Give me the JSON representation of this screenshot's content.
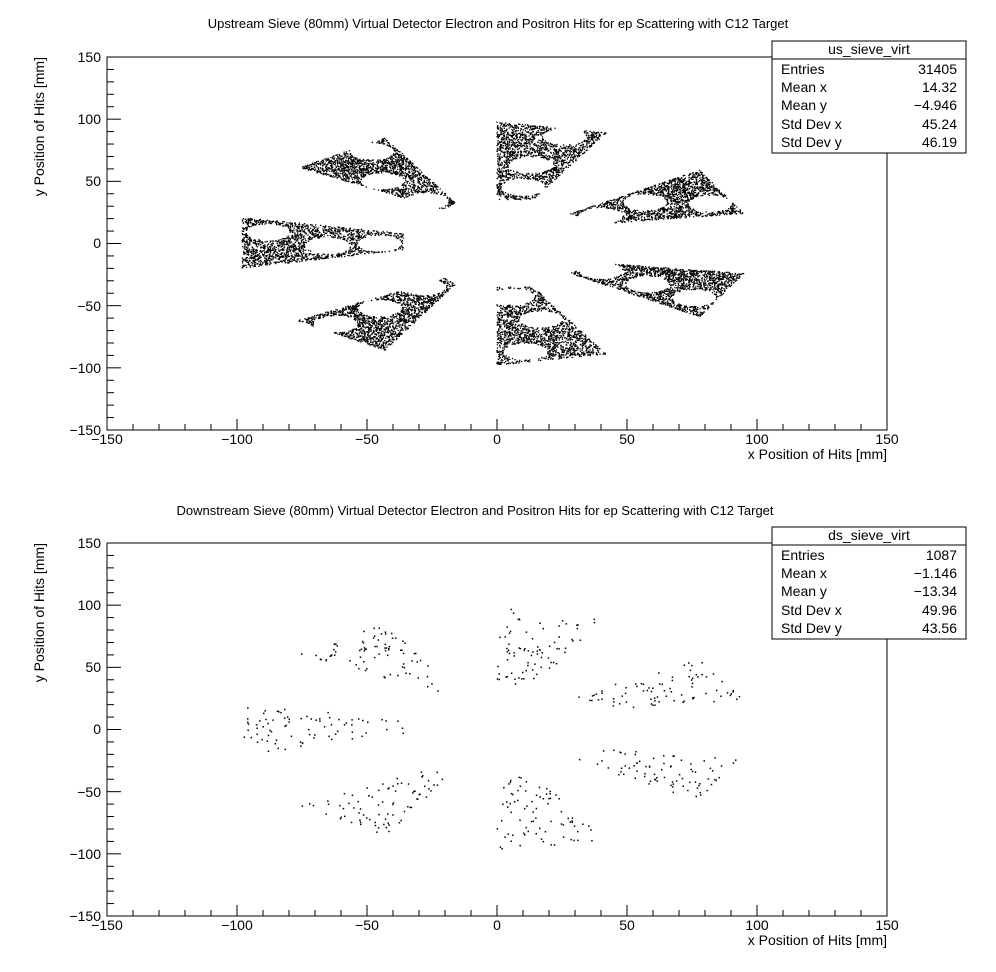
{
  "chart_data": [
    {
      "type": "scatter",
      "title": "Upstream Sieve (80mm) Virtual Detector Electron and Positron Hits for ep Scattering with C12 Target",
      "xlabel": "x Position of Hits [mm]",
      "ylabel": "y Position of Hits [mm]",
      "xlim": [
        -150,
        150
      ],
      "ylim": [
        -150,
        150
      ],
      "x_ticks": [
        "−150",
        "−100",
        "−50",
        "0",
        "50",
        "100",
        "150"
      ],
      "y_ticks": [
        "−150",
        "−100",
        "−50",
        "0",
        "50",
        "100",
        "150"
      ],
      "density": "high",
      "stats": {
        "name": "us_sieve_virt",
        "rows": [
          {
            "label": "Entries",
            "value": "31405"
          },
          {
            "label": "Mean x",
            "value": "14.32"
          },
          {
            "label": "Mean y",
            "value": "−4.946"
          },
          {
            "label": "Std Dev x",
            "value": "45.24"
          },
          {
            "label": "Std Dev y",
            "value": "46.19"
          }
        ]
      },
      "regions": [
        {
          "polygon": [
            [
              -76,
              61
            ],
            [
              -43,
              85
            ],
            [
              -16,
              33
            ],
            [
              -20,
              27
            ]
          ],
          "holes": [
            [
              -48,
              74
            ],
            [
              -44,
              50
            ],
            [
              -27,
              34
            ]
          ]
        },
        {
          "polygon": [
            [
              0,
              98
            ],
            [
              42,
              89
            ],
            [
              14,
              35
            ],
            [
              0,
              35
            ]
          ],
          "holes": [
            [
              26,
              86
            ],
            [
              13,
              63
            ],
            [
              10,
              45
            ]
          ]
        },
        {
          "polygon": [
            [
              28,
              24
            ],
            [
              78,
              59
            ],
            [
              95,
              24
            ],
            [
              41,
              16
            ]
          ],
          "holes": [
            [
              40,
              22
            ],
            [
              57,
              33
            ],
            [
              82,
              32
            ]
          ]
        },
        {
          "polygon": [
            [
              -98,
              21
            ],
            [
              -36,
              8
            ],
            [
              -36,
              -5
            ],
            [
              -98,
              -20
            ]
          ],
          "holes": [
            [
              -88,
              9
            ],
            [
              -65,
              -2
            ],
            [
              -45,
              0
            ]
          ]
        },
        {
          "polygon": [
            [
              28,
              -24
            ],
            [
              78,
              -59
            ],
            [
              95,
              -24
            ],
            [
              41,
              -16
            ]
          ],
          "holes": [
            [
              40,
              -22
            ],
            [
              58,
              -33
            ],
            [
              76,
              -44
            ]
          ]
        },
        {
          "polygon": [
            [
              -77,
              -62
            ],
            [
              -43,
              -86
            ],
            [
              -16,
              -33
            ],
            [
              -20,
              -28
            ]
          ],
          "holes": [
            [
              -62,
              -65
            ],
            [
              -45,
              -52
            ],
            [
              -28,
              -35
            ]
          ]
        },
        {
          "polygon": [
            [
              0,
              -98
            ],
            [
              42,
              -89
            ],
            [
              14,
              -35
            ],
            [
              0,
              -35
            ]
          ],
          "holes": [
            [
              6,
              -43
            ],
            [
              17,
              -61
            ],
            [
              11,
              -87
            ]
          ]
        }
      ]
    },
    {
      "type": "scatter",
      "title": "Downstream Sieve (80mm) Virtual Detector Electron and Positron Hits for ep Scattering with C12 Target",
      "xlabel": "x Position of Hits [mm]",
      "ylabel": "y Position of Hits [mm]",
      "xlim": [
        -150,
        150
      ],
      "ylim": [
        -150,
        150
      ],
      "x_ticks": [
        "−150",
        "−100",
        "−50",
        "0",
        "50",
        "100",
        "150"
      ],
      "y_ticks": [
        "−150",
        "−100",
        "−50",
        "0",
        "50",
        "100",
        "150"
      ],
      "density": "low",
      "stats": {
        "name": "ds_sieve_virt",
        "rows": [
          {
            "label": "Entries",
            "value": "1087"
          },
          {
            "label": "Mean x",
            "value": "−1.146"
          },
          {
            "label": "Mean y",
            "value": "−13.34"
          },
          {
            "label": "Std Dev x",
            "value": "49.96"
          },
          {
            "label": "Std Dev y",
            "value": "43.56"
          }
        ]
      },
      "regions": [
        {
          "polygon": [
            [
              -76,
              61
            ],
            [
              -43,
              85
            ],
            [
              -16,
              33
            ],
            [
              -20,
              27
            ]
          ],
          "holes": []
        },
        {
          "polygon": [
            [
              0,
              98
            ],
            [
              42,
              89
            ],
            [
              14,
              35
            ],
            [
              0,
              35
            ]
          ],
          "holes": []
        },
        {
          "polygon": [
            [
              28,
              24
            ],
            [
              78,
              59
            ],
            [
              95,
              24
            ],
            [
              41,
              16
            ]
          ],
          "holes": []
        },
        {
          "polygon": [
            [
              -98,
              21
            ],
            [
              -36,
              8
            ],
            [
              -36,
              -5
            ],
            [
              -98,
              -20
            ]
          ],
          "holes": []
        },
        {
          "polygon": [
            [
              28,
              -24
            ],
            [
              78,
              -59
            ],
            [
              95,
              -24
            ],
            [
              41,
              -16
            ]
          ],
          "holes": []
        },
        {
          "polygon": [
            [
              -77,
              -62
            ],
            [
              -43,
              -86
            ],
            [
              -16,
              -33
            ],
            [
              -20,
              -28
            ]
          ],
          "holes": []
        },
        {
          "polygon": [
            [
              0,
              -98
            ],
            [
              42,
              -89
            ],
            [
              14,
              -35
            ],
            [
              0,
              -35
            ]
          ],
          "holes": []
        }
      ]
    }
  ]
}
